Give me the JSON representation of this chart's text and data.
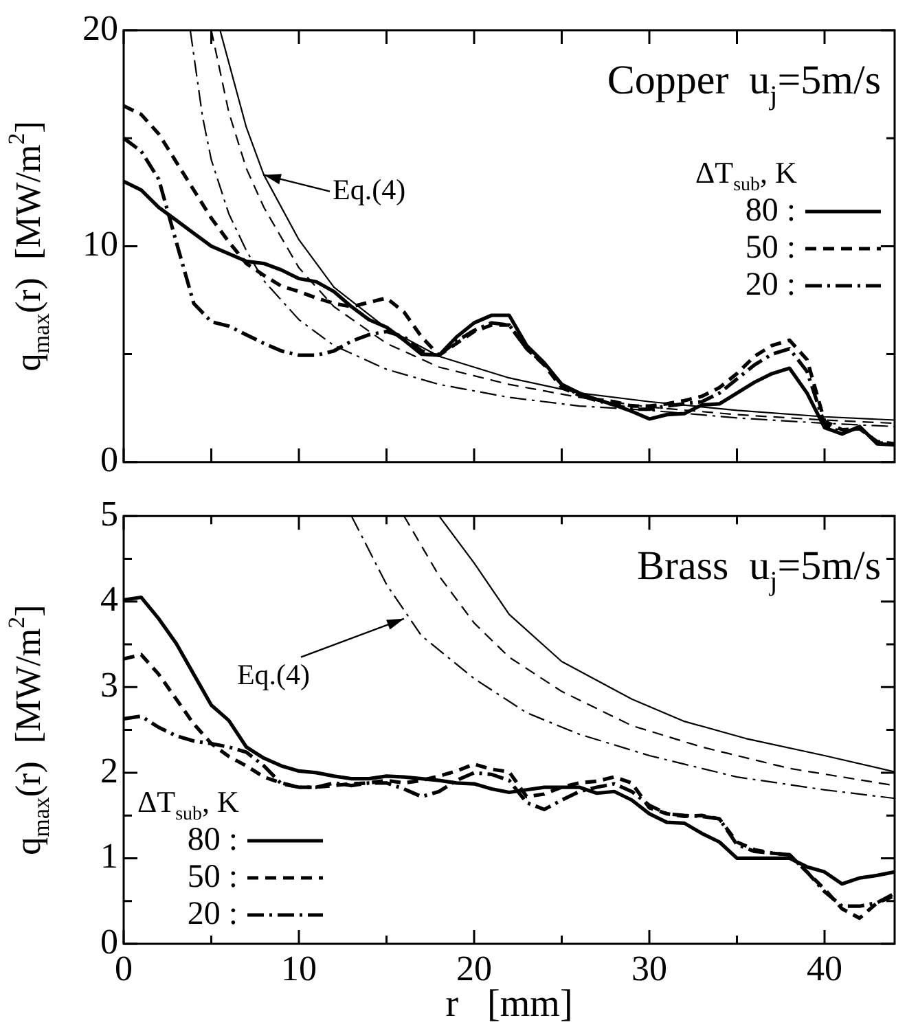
{
  "chart_data": [
    {
      "type": "line",
      "ylabel": "q$_{max}$(r)  [MW/m$^{2}$]",
      "legend_title": "ΔT$_{sub}$, K",
      "legend": "right",
      "tick_labels": "y",
      "grid": false,
      "annotations": [
        "Copper  u$_{j}$=5m/s",
        {
          "text": "Eq.(4)",
          "x": 8,
          "y": 13.3
        }
      ],
      "xlim": [
        0,
        44
      ],
      "xticks": [
        {
          "value": 0,
          "label": null
        },
        {
          "value": 5,
          "label": null
        },
        {
          "value": 10,
          "label": null
        },
        {
          "value": 15,
          "label": null
        },
        {
          "value": 20,
          "label": null
        },
        {
          "value": 25,
          "label": null
        },
        {
          "value": 30,
          "label": null
        },
        {
          "value": 35,
          "label": null
        },
        {
          "value": 40,
          "label": null
        }
      ],
      "ylim": [
        0,
        20
      ],
      "yticks": [
        0,
        {
          "value": 5,
          "label": null
        },
        10,
        {
          "value": 15,
          "label": null
        },
        20
      ],
      "x": [
        0,
        1,
        2,
        3,
        4,
        5,
        6,
        7,
        8,
        9,
        10,
        11,
        12,
        13,
        14,
        15,
        16,
        17,
        18,
        19,
        20,
        21,
        22,
        23,
        24,
        25,
        26,
        27,
        28,
        29,
        30,
        31,
        32,
        33,
        34,
        35,
        36,
        37,
        38,
        39,
        40,
        41,
        42,
        43,
        44
      ],
      "series": [
        {
          "name": "80 :",
          "color": "#000000",
          "line_style": "solid",
          "values": [
            13.0,
            12.6,
            11.8,
            11.2,
            10.6,
            10.0,
            9.65,
            9.3,
            9.2,
            8.9,
            8.5,
            8.35,
            7.9,
            7.2,
            6.6,
            6.25,
            5.65,
            5.0,
            4.95,
            5.8,
            6.45,
            6.8,
            6.8,
            5.4,
            4.6,
            3.6,
            3.2,
            2.9,
            2.65,
            2.35,
            2.0,
            2.2,
            2.25,
            2.65,
            2.7,
            3.2,
            3.7,
            4.1,
            4.35,
            3.2,
            1.6,
            1.3,
            1.65,
            0.85,
            0.8
          ]
        },
        {
          "name": "50 :",
          "color": "#000000",
          "line_style": "dashed",
          "values": [
            16.5,
            16.1,
            15.2,
            13.9,
            12.6,
            11.3,
            10.2,
            9.2,
            8.65,
            8.15,
            7.9,
            7.6,
            7.35,
            7.2,
            7.4,
            7.6,
            6.95,
            5.8,
            4.95,
            5.5,
            6.05,
            6.35,
            6.35,
            5.25,
            4.5,
            3.45,
            3.1,
            2.9,
            2.8,
            2.6,
            2.6,
            2.7,
            2.85,
            3.05,
            3.45,
            4.1,
            4.9,
            5.4,
            5.65,
            4.75,
            1.9,
            1.5,
            1.55,
            0.95,
            0.85
          ]
        },
        {
          "name": "20 :",
          "color": "#000000",
          "line_style": "dashdot",
          "values": [
            15.0,
            14.4,
            13.1,
            10.2,
            7.35,
            6.5,
            6.3,
            5.9,
            5.5,
            5.15,
            4.95,
            4.95,
            5.15,
            5.6,
            5.9,
            6.05,
            5.8,
            5.15,
            4.95,
            5.6,
            6.1,
            6.45,
            6.35,
            5.25,
            4.55,
            3.6,
            3.1,
            2.85,
            2.65,
            2.45,
            2.45,
            2.6,
            2.7,
            2.8,
            3.2,
            3.85,
            4.5,
            5.0,
            5.25,
            4.2,
            1.75,
            1.35,
            1.6,
            0.9,
            0.85
          ]
        },
        {
          "color": "#000000",
          "line_style": "solid",
          "x": [
            5.5,
            6,
            7,
            8,
            10,
            12,
            15,
            18,
            22,
            26,
            30,
            35,
            40,
            44
          ],
          "values": [
            20,
            18.5,
            15.5,
            13.3,
            10.3,
            8.1,
            6.2,
            4.9,
            3.9,
            3.2,
            2.8,
            2.4,
            2.1,
            1.95
          ]
        },
        {
          "color": "#000000",
          "line_style": "dashed",
          "x": [
            5,
            6,
            7,
            8,
            10,
            12,
            15,
            18,
            22,
            26,
            30,
            35,
            40,
            44
          ],
          "values": [
            20,
            16.2,
            13.6,
            11.8,
            9.0,
            7.2,
            5.5,
            4.4,
            3.6,
            3.0,
            2.55,
            2.2,
            1.95,
            1.8
          ]
        },
        {
          "color": "#000000",
          "line_style": "dashdot",
          "x": [
            3.8,
            4.5,
            5,
            6,
            7,
            8,
            10,
            12,
            15,
            18,
            22,
            26,
            30,
            35,
            40,
            44
          ],
          "values": [
            20,
            16,
            14,
            11.5,
            9.8,
            8.4,
            6.6,
            5.4,
            4.3,
            3.6,
            3.0,
            2.6,
            2.4,
            2.05,
            1.8,
            1.65
          ]
        }
      ]
    },
    {
      "type": "line",
      "ylabel": "q$_{max}$(r)  [MW/m$^{2}$]",
      "xlabel": "r   [mm]",
      "legend_title": "ΔT$_{sub}$, K",
      "legend": "bottom left",
      "grid": false,
      "annotations": [
        "Brass  u$_{j}$=5m/s",
        {
          "text": "Eq.(4)",
          "x": 16,
          "y": 3.8
        }
      ],
      "xlim": [
        0,
        44
      ],
      "xticks": [
        0,
        {
          "value": 5,
          "label": null
        },
        10,
        {
          "value": 15,
          "label": null
        },
        20,
        {
          "value": 25,
          "label": null
        },
        30,
        {
          "value": 35,
          "label": null
        },
        40
      ],
      "ylim": [
        0,
        5
      ],
      "yticks": [
        0,
        {
          "value": 0.5,
          "label": null
        },
        1,
        {
          "value": 1.5,
          "label": null
        },
        2,
        {
          "value": 2.5,
          "label": null
        },
        3,
        {
          "value": 3.5,
          "label": null
        },
        4,
        {
          "value": 4.5,
          "label": null
        },
        5
      ],
      "x": [
        0,
        1,
        2,
        3,
        4,
        5,
        6,
        7,
        8,
        9,
        10,
        11,
        12,
        13,
        14,
        15,
        16,
        17,
        18,
        19,
        20,
        21,
        22,
        23,
        24,
        25,
        26,
        27,
        28,
        29,
        30,
        31,
        32,
        33,
        34,
        35,
        36,
        37,
        38,
        39,
        40,
        41,
        42,
        43,
        44
      ],
      "series": [
        {
          "name": "80 :",
          "color": "#000000",
          "line_style": "solid",
          "values": [
            4.02,
            4.05,
            3.8,
            3.51,
            3.15,
            2.79,
            2.61,
            2.3,
            2.17,
            2.08,
            2.02,
            2.0,
            1.96,
            1.93,
            1.93,
            1.96,
            1.95,
            1.93,
            1.91,
            1.88,
            1.87,
            1.81,
            1.77,
            1.8,
            1.83,
            1.83,
            1.83,
            1.76,
            1.78,
            1.68,
            1.52,
            1.42,
            1.41,
            1.29,
            1.19,
            1.0,
            1.0,
            1.0,
            1.0,
            0.9,
            0.84,
            0.7,
            0.77,
            0.8,
            0.84
          ]
        },
        {
          "name": "50 :",
          "color": "#000000",
          "line_style": "dashed",
          "values": [
            3.33,
            3.38,
            3.15,
            2.86,
            2.57,
            2.34,
            2.19,
            2.08,
            1.95,
            1.88,
            1.83,
            1.83,
            1.85,
            1.87,
            1.88,
            1.91,
            1.88,
            1.91,
            1.96,
            2.02,
            2.1,
            2.04,
            2.01,
            1.72,
            1.75,
            1.83,
            1.88,
            1.9,
            1.95,
            1.88,
            1.59,
            1.52,
            1.49,
            1.5,
            1.46,
            1.19,
            1.1,
            1.06,
            1.04,
            0.84,
            0.64,
            0.41,
            0.3,
            0.48,
            0.56
          ]
        },
        {
          "name": "20 :",
          "color": "#000000",
          "line_style": "dashdot",
          "values": [
            2.63,
            2.66,
            2.53,
            2.43,
            2.37,
            2.34,
            2.3,
            2.24,
            2.08,
            1.87,
            1.83,
            1.83,
            1.88,
            1.85,
            1.88,
            1.88,
            1.81,
            1.72,
            1.78,
            1.91,
            2.0,
            1.98,
            1.91,
            1.65,
            1.57,
            1.68,
            1.78,
            1.83,
            1.87,
            1.78,
            1.62,
            1.52,
            1.5,
            1.49,
            1.46,
            1.16,
            1.08,
            1.06,
            1.04,
            0.84,
            0.61,
            0.44,
            0.44,
            0.48,
            0.59
          ]
        },
        {
          "color": "#000000",
          "line_style": "solid",
          "x": [
            18,
            20,
            22,
            25,
            29,
            32,
            35.5,
            40,
            44
          ],
          "values": [
            5.0,
            4.45,
            3.85,
            3.3,
            2.86,
            2.6,
            2.4,
            2.2,
            2.01
          ]
        },
        {
          "color": "#000000",
          "line_style": "dashed",
          "x": [
            16,
            18,
            20,
            22,
            25,
            29,
            33,
            38,
            44
          ],
          "values": [
            5.0,
            4.3,
            3.75,
            3.35,
            2.95,
            2.55,
            2.3,
            2.05,
            1.85
          ]
        },
        {
          "color": "#000000",
          "line_style": "dashdot",
          "x": [
            13,
            15,
            17,
            20,
            23,
            26,
            30,
            35,
            40,
            44
          ],
          "values": [
            5.0,
            4.2,
            3.6,
            3.1,
            2.7,
            2.45,
            2.2,
            1.95,
            1.8,
            1.7
          ]
        }
      ]
    }
  ]
}
